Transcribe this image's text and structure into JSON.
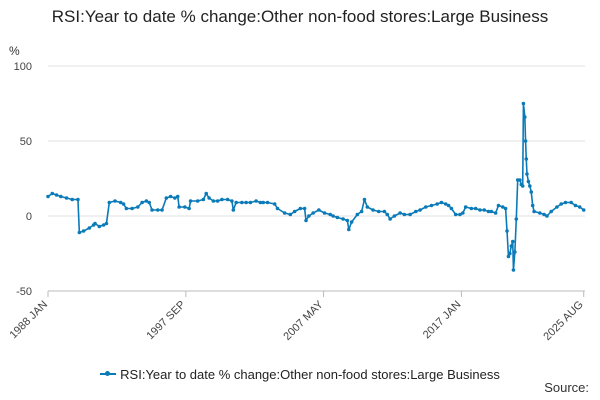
{
  "chart_data": {
    "type": "line",
    "title": "RSI:Year to date % change:Other non-food stores:Large Business",
    "ylabel": "%",
    "ylim": [
      -50,
      100
    ],
    "yticks": [
      -50,
      0,
      50,
      100
    ],
    "xlim": [
      1988.0,
      2025.67
    ],
    "xticks": [
      {
        "label": "1988 JAN",
        "x": 1988.0
      },
      {
        "label": "1997 SEP",
        "x": 1997.67
      },
      {
        "label": "2007 MAY",
        "x": 2007.33
      },
      {
        "label": "2017 JAN",
        "x": 2017.0
      },
      {
        "label": "2025 AUG",
        "x": 2025.58
      }
    ],
    "grid": true,
    "legend_position": "bottom",
    "color": "#0a7ab8",
    "series": [
      {
        "name": "RSI:Year to date % change:Other non-food stores:Large Business",
        "points": [
          [
            1988.0,
            13
          ],
          [
            1988.3,
            15
          ],
          [
            1988.6,
            14
          ],
          [
            1988.9,
            13
          ],
          [
            1989.3,
            12
          ],
          [
            1989.7,
            11
          ],
          [
            1990.1,
            11
          ],
          [
            1990.2,
            -11
          ],
          [
            1990.5,
            -10
          ],
          [
            1990.9,
            -8
          ],
          [
            1991.2,
            -6
          ],
          [
            1991.3,
            -5
          ],
          [
            1991.6,
            -7
          ],
          [
            1991.9,
            -6
          ],
          [
            1992.1,
            -5
          ],
          [
            1992.3,
            9
          ],
          [
            1992.7,
            10
          ],
          [
            1993.1,
            9
          ],
          [
            1993.3,
            8
          ],
          [
            1993.5,
            5
          ],
          [
            1993.9,
            5
          ],
          [
            1994.3,
            6
          ],
          [
            1994.6,
            9
          ],
          [
            1994.9,
            10
          ],
          [
            1995.1,
            9
          ],
          [
            1995.3,
            4
          ],
          [
            1995.7,
            4
          ],
          [
            1996.0,
            4
          ],
          [
            1996.3,
            12
          ],
          [
            1996.6,
            13
          ],
          [
            1996.9,
            12
          ],
          [
            1997.1,
            13
          ],
          [
            1997.2,
            6
          ],
          [
            1997.6,
            6
          ],
          [
            1997.9,
            5
          ],
          [
            1998.0,
            10
          ],
          [
            1998.5,
            10
          ],
          [
            1998.9,
            11
          ],
          [
            1999.1,
            15
          ],
          [
            1999.3,
            12
          ],
          [
            1999.6,
            10
          ],
          [
            1999.9,
            10
          ],
          [
            2000.2,
            11
          ],
          [
            2000.6,
            11
          ],
          [
            2000.9,
            10
          ],
          [
            2001.0,
            4
          ],
          [
            2001.2,
            9
          ],
          [
            2001.6,
            9
          ],
          [
            2001.9,
            9
          ],
          [
            2002.2,
            9
          ],
          [
            2002.6,
            10
          ],
          [
            2002.9,
            9
          ],
          [
            2003.1,
            9
          ],
          [
            2003.4,
            9
          ],
          [
            2003.9,
            8
          ],
          [
            2004.1,
            5
          ],
          [
            2004.6,
            2
          ],
          [
            2005.0,
            1
          ],
          [
            2005.3,
            3
          ],
          [
            2005.7,
            5
          ],
          [
            2006.0,
            5
          ],
          [
            2006.1,
            -3
          ],
          [
            2006.3,
            0
          ],
          [
            2006.6,
            2
          ],
          [
            2007.0,
            4
          ],
          [
            2007.4,
            2
          ],
          [
            2007.8,
            1
          ],
          [
            2008.0,
            0
          ],
          [
            2008.3,
            -1
          ],
          [
            2008.7,
            -2
          ],
          [
            2009.0,
            -3
          ],
          [
            2009.1,
            -9
          ],
          [
            2009.3,
            -4
          ],
          [
            2009.7,
            1
          ],
          [
            2010.0,
            3
          ],
          [
            2010.2,
            11
          ],
          [
            2010.4,
            6
          ],
          [
            2010.8,
            4
          ],
          [
            2011.2,
            3
          ],
          [
            2011.6,
            3
          ],
          [
            2011.8,
            1
          ],
          [
            2012.0,
            -2
          ],
          [
            2012.3,
            0
          ],
          [
            2012.7,
            2
          ],
          [
            2013.0,
            1
          ],
          [
            2013.4,
            1
          ],
          [
            2013.8,
            3
          ],
          [
            2014.1,
            4
          ],
          [
            2014.5,
            6
          ],
          [
            2014.9,
            7
          ],
          [
            2015.3,
            8
          ],
          [
            2015.6,
            9
          ],
          [
            2015.9,
            8
          ],
          [
            2016.1,
            7
          ],
          [
            2016.3,
            5
          ],
          [
            2016.6,
            1
          ],
          [
            2016.9,
            1
          ],
          [
            2017.1,
            2
          ],
          [
            2017.3,
            6
          ],
          [
            2017.7,
            5
          ],
          [
            2018.0,
            5
          ],
          [
            2018.3,
            4
          ],
          [
            2018.6,
            4
          ],
          [
            2018.9,
            3
          ],
          [
            2019.1,
            3
          ],
          [
            2019.4,
            2
          ],
          [
            2019.6,
            7
          ],
          [
            2019.9,
            6
          ],
          [
            2020.1,
            5
          ],
          [
            2020.2,
            -10
          ],
          [
            2020.3,
            -27
          ],
          [
            2020.4,
            -25
          ],
          [
            2020.5,
            -20
          ],
          [
            2020.6,
            -17
          ],
          [
            2020.65,
            -36
          ],
          [
            2020.75,
            -24
          ],
          [
            2020.85,
            -2
          ],
          [
            2020.95,
            24
          ],
          [
            2021.1,
            24
          ],
          [
            2021.2,
            21
          ],
          [
            2021.3,
            20
          ],
          [
            2021.35,
            75
          ],
          [
            2021.45,
            66
          ],
          [
            2021.5,
            50
          ],
          [
            2021.55,
            38
          ],
          [
            2021.6,
            28
          ],
          [
            2021.7,
            23
          ],
          [
            2021.8,
            20
          ],
          [
            2021.9,
            16
          ],
          [
            2022.0,
            7
          ],
          [
            2022.1,
            3
          ],
          [
            2022.5,
            2
          ],
          [
            2022.8,
            1
          ],
          [
            2023.0,
            0
          ],
          [
            2023.3,
            3
          ],
          [
            2023.7,
            6
          ],
          [
            2024.0,
            8
          ],
          [
            2024.3,
            9
          ],
          [
            2024.7,
            9
          ],
          [
            2025.0,
            7
          ],
          [
            2025.3,
            6
          ],
          [
            2025.58,
            4
          ]
        ]
      }
    ]
  },
  "legend": {
    "label": "RSI:Year to date % change:Other non-food stores:Large Business"
  },
  "source_label": "Source:"
}
